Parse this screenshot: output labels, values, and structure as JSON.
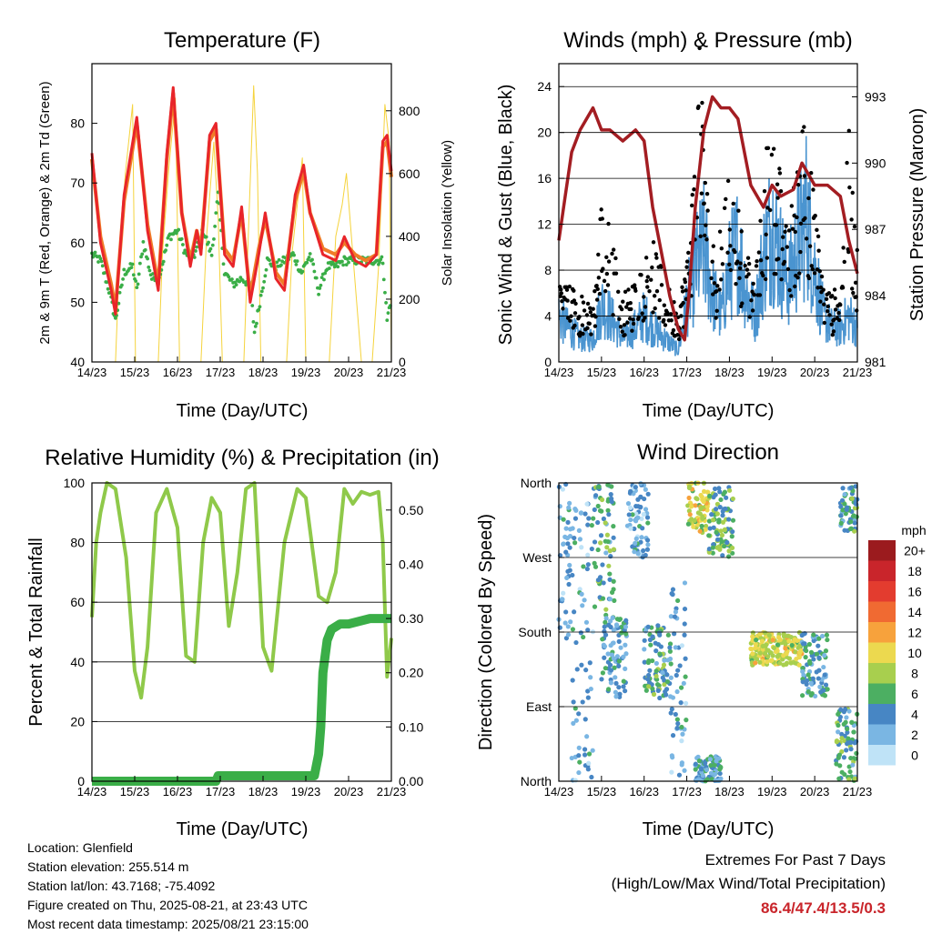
{
  "chart_data": [
    {
      "type": "line",
      "title": "Temperature (F)",
      "xlabel": "Time (Day/UTC)",
      "ylabel": "2m & 9m T (Red, Orange) & 2m Td (Green)",
      "y2label": "Solar Insolation (Yellow)",
      "x_ticks": [
        "14/23",
        "15/23",
        "16/23",
        "17/23",
        "18/23",
        "19/23",
        "20/23",
        "21/23"
      ],
      "xlim": [
        0,
        7
      ],
      "ylim": [
        40,
        90
      ],
      "y_ticks": [
        40,
        50,
        60,
        70,
        80
      ],
      "y2lim": [
        0,
        950
      ],
      "y2_ticks": [
        0,
        200,
        400,
        600,
        800
      ],
      "series": [
        {
          "name": "2m T",
          "color": "#e8252a",
          "x": [
            0,
            0.2,
            0.45,
            0.55,
            0.75,
            1.05,
            1.3,
            1.55,
            1.75,
            1.9,
            2.1,
            2.3,
            2.45,
            2.55,
            2.75,
            2.9,
            3.1,
            3.3,
            3.5,
            3.7,
            3.9,
            4.05,
            4.3,
            4.5,
            4.75,
            4.95,
            5.1,
            5.4,
            5.7,
            5.9,
            6.15,
            6.4,
            6.65,
            6.8,
            6.9,
            7.0
          ],
          "y": [
            75,
            60,
            52,
            48,
            68,
            81,
            62,
            52,
            75,
            86,
            65,
            56,
            62,
            58,
            78,
            80,
            58,
            56,
            66,
            50,
            58,
            65,
            54,
            52,
            68,
            73,
            65,
            58,
            57,
            61,
            57,
            56,
            58,
            77,
            78,
            72
          ]
        },
        {
          "name": "9m T",
          "color": "#f07c28",
          "x": [
            0,
            0.2,
            0.45,
            0.55,
            0.75,
            1.05,
            1.3,
            1.55,
            1.75,
            1.9,
            2.1,
            2.3,
            2.45,
            2.55,
            2.75,
            2.9,
            3.1,
            3.3,
            3.5,
            3.7,
            3.9,
            4.05,
            4.3,
            4.5,
            4.75,
            4.95,
            5.1,
            5.4,
            5.7,
            5.9,
            6.15,
            6.4,
            6.65,
            6.8,
            6.9,
            7.0
          ],
          "y": [
            74,
            61,
            53,
            49,
            67,
            80,
            63,
            53,
            74,
            85,
            65,
            57,
            62,
            59,
            77,
            79,
            59,
            57,
            65,
            51,
            59,
            64,
            55,
            53,
            67,
            72,
            65,
            59,
            58,
            60,
            58,
            57,
            58,
            76,
            77,
            71
          ]
        },
        {
          "name": "2m Td",
          "color": "#3aae47",
          "x": [
            0,
            0.2,
            0.4,
            0.55,
            0.75,
            0.95,
            1.05,
            1.2,
            1.4,
            1.6,
            1.8,
            2.0,
            2.2,
            2.4,
            2.6,
            2.8,
            2.95,
            3.1,
            3.3,
            3.5,
            3.7,
            3.8,
            3.95,
            4.1,
            4.3,
            4.5,
            4.7,
            4.9,
            5.1,
            5.3,
            5.5,
            5.7,
            5.9,
            6.1,
            6.3,
            6.5,
            6.7,
            6.8,
            6.9,
            7.0
          ],
          "y": [
            58,
            57,
            52,
            47,
            55,
            56,
            52,
            60,
            54,
            55,
            61,
            62,
            58,
            58,
            62,
            58,
            68,
            55,
            53,
            54,
            53,
            45,
            51,
            57,
            56,
            57,
            58,
            55,
            58,
            52,
            56,
            56,
            57,
            57,
            57,
            57,
            57,
            57,
            47,
            51
          ]
        },
        {
          "name": "Solar",
          "color": "#f5d33c",
          "axis": "y2",
          "x": [
            0,
            0.55,
            0.65,
            0.78,
            0.95,
            1.02,
            1.25,
            1.4,
            1.55,
            1.65,
            1.8,
            1.95,
            2.05,
            2.3,
            2.45,
            2.55,
            2.68,
            2.85,
            2.95,
            3.05,
            3.3,
            3.45,
            3.55,
            3.68,
            3.78,
            3.87,
            3.95,
            4.3,
            4.45,
            4.55,
            4.68,
            4.8,
            4.92,
            5.0,
            5.3,
            5.45,
            5.55,
            5.7,
            5.85,
            5.95,
            6.3,
            6.5,
            6.55,
            6.7,
            6.85,
            6.95,
            7.0
          ],
          "y": [
            0,
            0,
            350,
            600,
            820,
            0,
            0,
            0,
            0,
            350,
            620,
            840,
            0,
            0,
            0,
            0,
            400,
            700,
            460,
            0,
            0,
            0,
            0,
            500,
            880,
            600,
            0,
            0,
            0,
            0,
            350,
            500,
            650,
            0,
            0,
            0,
            0,
            400,
            500,
            600,
            0,
            0,
            0,
            300,
            820,
            700,
            0
          ]
        }
      ]
    },
    {
      "type": "scatter",
      "title": "Winds (mph) & Pressure (mb)",
      "xlabel": "Time (Day/UTC)",
      "ylabel": "Sonic Wind & Gust (Blue, Black)",
      "y2label": "Station Pressure (Maroon)",
      "x_ticks": [
        "14/23",
        "15/23",
        "16/23",
        "17/23",
        "18/23",
        "19/23",
        "20/23",
        "21/23"
      ],
      "xlim": [
        0,
        7
      ],
      "ylim": [
        0,
        26
      ],
      "y_ticks": [
        0,
        4,
        8,
        12,
        16,
        20,
        24
      ],
      "y2lim": [
        981,
        994.5
      ],
      "y2_ticks": [
        981,
        984,
        987,
        990,
        993
      ],
      "series": [
        {
          "name": "Sonic Wind",
          "color": "#4a94d0",
          "x": [
            0,
            0.2,
            0.5,
            0.8,
            1.0,
            1.2,
            1.5,
            1.8,
            2.0,
            2.2,
            2.5,
            2.8,
            3.0,
            3.2,
            3.4,
            3.6,
            3.8,
            4.0,
            4.2,
            4.4,
            4.6,
            4.8,
            5.0,
            5.2,
            5.4,
            5.6,
            5.8,
            6.0,
            6.2,
            6.4,
            6.6,
            6.8,
            7.0
          ],
          "y": [
            4,
            3,
            2,
            2,
            5,
            4,
            2,
            3,
            4,
            3,
            2,
            1,
            5,
            8,
            10,
            6,
            4,
            8,
            10,
            6,
            4,
            9,
            12,
            9,
            7,
            10,
            13,
            8,
            4,
            3,
            3,
            4,
            3
          ]
        },
        {
          "name": "Gust",
          "color": "#000000",
          "x": [
            0,
            0.2,
            0.5,
            0.8,
            1.0,
            1.2,
            1.5,
            1.8,
            2.0,
            2.2,
            2.5,
            2.8,
            3.0,
            3.15,
            3.3,
            3.5,
            3.65,
            3.8,
            4.0,
            4.2,
            4.4,
            4.6,
            4.8,
            4.95,
            5.2,
            5.4,
            5.6,
            5.75,
            6.0,
            6.2,
            6.4,
            6.6,
            6.8,
            7.0
          ],
          "y": [
            7,
            6,
            5,
            4,
            12,
            10,
            5,
            6,
            8,
            9,
            6,
            4,
            8,
            14,
            23,
            13,
            8,
            10,
            15,
            12,
            8,
            6,
            13,
            19,
            14,
            11,
            15,
            19,
            12,
            6,
            5,
            6,
            17,
            8
          ]
        },
        {
          "name": "Pressure",
          "color": "#a31d22",
          "axis": "y2",
          "x": [
            0,
            0.15,
            0.3,
            0.5,
            0.8,
            1.0,
            1.2,
            1.5,
            1.8,
            2.0,
            2.2,
            2.4,
            2.6,
            2.8,
            2.95,
            3.05,
            3.2,
            3.4,
            3.6,
            3.8,
            4.0,
            4.2,
            4.5,
            4.8,
            5.0,
            5.2,
            5.5,
            5.7,
            6.0,
            6.3,
            6.6,
            6.8,
            7.0
          ],
          "y": [
            986.5,
            988.5,
            990.5,
            991.5,
            992.5,
            991.5,
            991.5,
            991.0,
            991.5,
            991.0,
            988,
            986,
            984,
            982.5,
            982,
            984,
            988,
            991.5,
            993,
            992.5,
            992.5,
            992,
            989,
            988,
            989,
            988.5,
            988.8,
            990,
            989,
            989,
            988.5,
            986.5,
            985
          ]
        }
      ]
    },
    {
      "type": "line",
      "title": "Relative Humidity (%) & Precipitation (in)",
      "xlabel": "Time (Day/UTC)",
      "ylabel": "Percent & Total Rainfall",
      "x_ticks": [
        "14/23",
        "15/23",
        "16/23",
        "17/23",
        "18/23",
        "19/23",
        "20/23",
        "21/23"
      ],
      "xlim": [
        0,
        7
      ],
      "ylim": [
        0,
        100
      ],
      "y_ticks": [
        0,
        20,
        40,
        60,
        80,
        100
      ],
      "y2lim": [
        0,
        0.55
      ],
      "y2_ticks": [
        "0.00",
        "0.10",
        "0.20",
        "0.30",
        "0.40",
        "0.50"
      ],
      "series": [
        {
          "name": "RH",
          "color": "#8fc94a",
          "x": [
            0,
            0.1,
            0.2,
            0.35,
            0.55,
            0.8,
            1.0,
            1.15,
            1.3,
            1.5,
            1.75,
            2.0,
            2.2,
            2.4,
            2.6,
            2.8,
            3.0,
            3.2,
            3.4,
            3.6,
            3.8,
            4.0,
            4.2,
            4.5,
            4.8,
            5.0,
            5.3,
            5.5,
            5.7,
            5.9,
            6.1,
            6.3,
            6.5,
            6.7,
            6.8,
            6.9,
            7.0
          ],
          "y": [
            55,
            80,
            90,
            100,
            98,
            75,
            37,
            28,
            45,
            90,
            98,
            85,
            42,
            40,
            80,
            95,
            90,
            52,
            70,
            98,
            100,
            45,
            37,
            80,
            98,
            95,
            62,
            60,
            70,
            98,
            93,
            97,
            96,
            97,
            80,
            35,
            48
          ]
        },
        {
          "name": "Total Rainfall",
          "color": "#3aae47",
          "axis": "y2",
          "x": [
            0,
            2.9,
            2.95,
            4.0,
            5.0,
            5.2,
            5.3,
            5.35,
            5.4,
            5.5,
            5.6,
            5.8,
            6.0,
            6.5,
            7.0
          ],
          "y": [
            0,
            0,
            0.01,
            0.01,
            0.01,
            0.01,
            0.05,
            0.1,
            0.2,
            0.26,
            0.28,
            0.29,
            0.29,
            0.3,
            0.3
          ]
        }
      ]
    },
    {
      "type": "scatter",
      "title": "Wind Direction",
      "xlabel": "Time (Day/UTC)",
      "ylabel": "Direction (Colored By Speed)",
      "x_ticks": [
        "14/23",
        "15/23",
        "16/23",
        "17/23",
        "18/23",
        "19/23",
        "20/23",
        "21/23"
      ],
      "xlim": [
        0,
        7
      ],
      "ylim": [
        0,
        360
      ],
      "y_ticks": [
        "North",
        "East",
        "South",
        "West",
        "North"
      ],
      "legend_title": "mph",
      "legend_labels": [
        "20+",
        "18",
        "16",
        "14",
        "12",
        "10",
        "8",
        "6",
        "4",
        "2",
        "0"
      ],
      "legend_colors": [
        "#9b1b1e",
        "#c9252b",
        "#e33c2f",
        "#f06a32",
        "#f7a23c",
        "#ecd94f",
        "#a8cf4e",
        "#4caf62",
        "#4786c4",
        "#7ab6e3",
        "#bfe3f7"
      ],
      "clusters": [
        {
          "x0": 0,
          "x1": 0.3,
          "y0": 170,
          "y1": 360,
          "speed": 3
        },
        {
          "x0": 0.3,
          "x1": 0.8,
          "y0": 0,
          "y1": 340,
          "speed": 3
        },
        {
          "x0": 0.8,
          "x1": 1.3,
          "y0": 200,
          "y1": 360,
          "speed": 5
        },
        {
          "x0": 1.0,
          "x1": 1.6,
          "y0": 100,
          "y1": 200,
          "speed": 4
        },
        {
          "x0": 1.6,
          "x1": 2.1,
          "y0": 270,
          "y1": 360,
          "speed": 3
        },
        {
          "x0": 2.0,
          "x1": 2.6,
          "y0": 100,
          "y1": 190,
          "speed": 5
        },
        {
          "x0": 2.6,
          "x1": 3.0,
          "y0": 0,
          "y1": 240,
          "speed": 3
        },
        {
          "x0": 3.0,
          "x1": 3.5,
          "y0": 300,
          "y1": 360,
          "speed": 9
        },
        {
          "x0": 3.5,
          "x1": 4.1,
          "y0": 270,
          "y1": 355,
          "speed": 6
        },
        {
          "x0": 3.2,
          "x1": 3.8,
          "y0": 0,
          "y1": 30,
          "speed": 4
        },
        {
          "x0": 4.5,
          "x1": 5.7,
          "y0": 140,
          "y1": 180,
          "speed": 9
        },
        {
          "x0": 5.7,
          "x1": 6.3,
          "y0": 100,
          "y1": 180,
          "speed": 4
        },
        {
          "x0": 6.5,
          "x1": 7.0,
          "y0": 0,
          "y1": 90,
          "speed": 5
        },
        {
          "x0": 6.6,
          "x1": 7.0,
          "y0": 300,
          "y1": 360,
          "speed": 5
        }
      ]
    }
  ],
  "info": {
    "location": "Location: Glenfield",
    "elevation": "Station elevation: 255.514 m",
    "latlon": "Station lat/lon: 43.7168; -75.4092",
    "created": "Figure created on Thu, 2025-08-21, at 23:43 UTC",
    "recent": "Most recent data timestamp: 2025/08/21 23:15:00"
  },
  "extremes": {
    "title": "Extremes For Past 7 Days",
    "subtitle": "(High/Low/Max Wind/Total Precipitation)",
    "values": "86.4/47.4/13.5/0.3",
    "color": "#c9252b"
  }
}
